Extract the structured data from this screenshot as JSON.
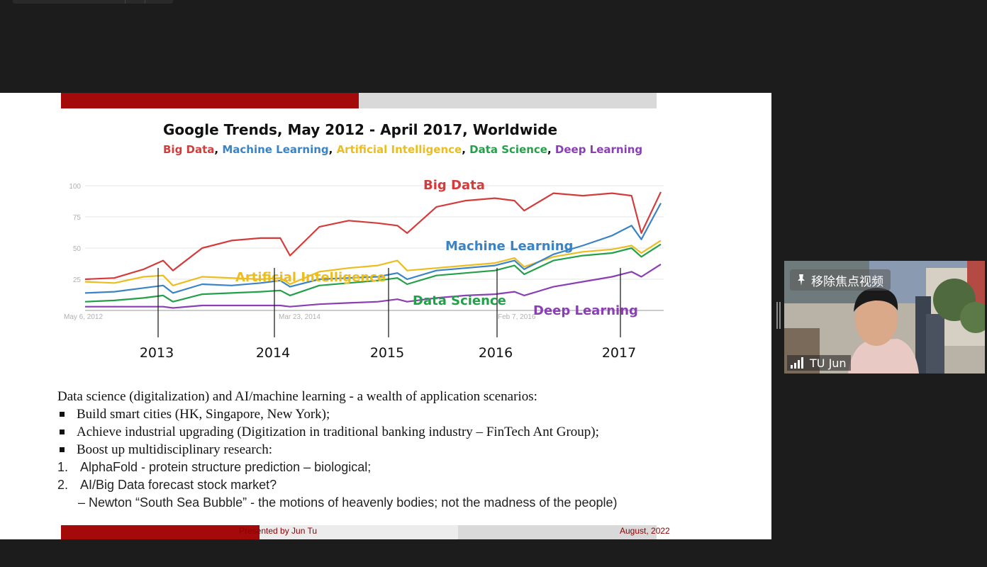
{
  "slide": {
    "chart_title": "Google Trends, May 2012 -  April 2017, Worldwide",
    "legend": [
      {
        "label": "Big Data",
        "color": "#d43c3c",
        "sep": ", "
      },
      {
        "label": "Machine Learning",
        "color": "#3a84c6",
        "sep": ", "
      },
      {
        "label": "Artificial Intelligence",
        "color": "#ebbd1e",
        "sep": ", "
      },
      {
        "label": "Data Science",
        "color": "#24a04a",
        "sep": ", "
      },
      {
        "label": "Deep Learning",
        "color": "#8a3fb3",
        "sep": ""
      }
    ],
    "body": {
      "intro": "Data science (digitalization) and AI/machine learning - a wealth of application scenarios:",
      "bullets": [
        "Build smart cities (HK, Singapore, New York);",
        "Achieve industrial upgrading (Digitization in traditional banking industry – FinTech Ant Group);",
        "Boost up multidisciplinary research:"
      ],
      "numbered": [
        {
          "n": "1.",
          "text": "AlphaFold - protein structure prediction – biological;"
        },
        {
          "n": "2.",
          "text": "AI/Big Data forecast stock market?"
        }
      ],
      "sub_line": "– Newton “South Sea Bubble” - the motions of heavenly bodies; not the madness of the people)"
    },
    "footer": {
      "presenter": "Presented by Jun Tu",
      "date": "August, 2022"
    }
  },
  "chart_data": {
    "type": "line",
    "title": "Google Trends, May 2012 -  April 2017, Worldwide",
    "subtitle": "Big Data, Machine Learning, Artificial Intelligence, Data Science, Deep Learning",
    "ylim": [
      0,
      100
    ],
    "yticks": [
      25,
      50,
      75,
      100
    ],
    "x_date_labels": [
      "May 6, 2012",
      "Mar 23, 2014",
      "Feb 7, 2016"
    ],
    "x_year_labels": [
      "2013",
      "2014",
      "2015",
      "2016",
      "2017"
    ],
    "x": [
      "2012-05",
      "2012-08",
      "2012-11",
      "2013-01",
      "2013-02",
      "2013-05",
      "2013-08",
      "2013-11",
      "2014-01",
      "2014-02",
      "2014-05",
      "2014-08",
      "2014-11",
      "2015-01",
      "2015-02",
      "2015-05",
      "2015-08",
      "2015-11",
      "2016-01",
      "2016-02",
      "2016-05",
      "2016-08",
      "2016-11",
      "2017-01",
      "2017-02",
      "2017-04"
    ],
    "series": [
      {
        "name": "Big Data",
        "color": "#d43c3c",
        "values": [
          25,
          26,
          33,
          40,
          32,
          50,
          56,
          58,
          58,
          44,
          67,
          72,
          70,
          68,
          62,
          83,
          88,
          90,
          88,
          80,
          94,
          92,
          94,
          92,
          62,
          95
        ]
      },
      {
        "name": "Machine Learning",
        "color": "#3a84c6",
        "values": [
          14,
          15,
          18,
          20,
          14,
          21,
          20,
          22,
          24,
          19,
          25,
          26,
          27,
          30,
          25,
          32,
          34,
          36,
          40,
          33,
          45,
          52,
          60,
          68,
          57,
          86
        ]
      },
      {
        "name": "Artificial Intelligence",
        "color": "#ebbd1e",
        "values": [
          23,
          22,
          27,
          28,
          20,
          27,
          26,
          25,
          26,
          21,
          31,
          34,
          36,
          40,
          32,
          34,
          36,
          38,
          42,
          35,
          43,
          47,
          49,
          52,
          46,
          56
        ]
      },
      {
        "name": "Data Science",
        "color": "#24a04a",
        "values": [
          7,
          8,
          10,
          12,
          7,
          13,
          14,
          15,
          16,
          12,
          20,
          22,
          24,
          26,
          21,
          28,
          30,
          32,
          36,
          29,
          40,
          44,
          46,
          50,
          43,
          53
        ]
      },
      {
        "name": "Deep Learning",
        "color": "#8a3fb3",
        "values": [
          3,
          3,
          3,
          3,
          2,
          4,
          4,
          4,
          4,
          3,
          5,
          6,
          7,
          9,
          7,
          10,
          12,
          13,
          15,
          12,
          19,
          23,
          27,
          31,
          27,
          37
        ]
      }
    ],
    "annotations": [
      "Big Data",
      "Machine Learning",
      "Artificial Intelligence",
      "Data Science",
      "Deep Learning"
    ],
    "grid": true
  },
  "video": {
    "pin_label": "移除焦点视频",
    "participant_name": "TU Jun"
  }
}
